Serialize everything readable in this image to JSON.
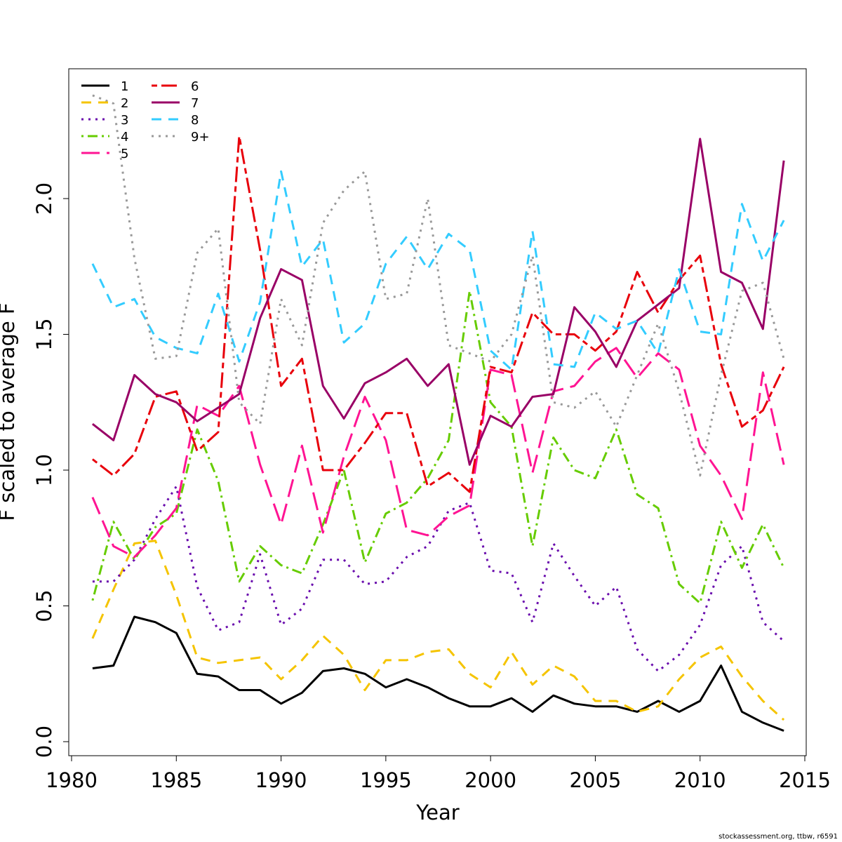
{
  "chart_data": {
    "type": "line",
    "title": "",
    "xlabel": "Year",
    "ylabel": "F scaled to average F",
    "xlim": [
      1980,
      2015
    ],
    "ylim": [
      0.0,
      2.4
    ],
    "xticks": [
      1980,
      1985,
      1990,
      1995,
      2000,
      2005,
      2010,
      2015
    ],
    "xtick_labels": [
      "1980",
      "1985",
      "1990",
      "1995",
      "2000",
      "2005",
      "2010",
      "2015"
    ],
    "yticks": [
      0.0,
      0.5,
      1.0,
      1.5,
      2.0
    ],
    "ytick_labels": [
      "0.0",
      "0.5",
      "1.0",
      "1.5",
      "2.0"
    ],
    "legend_position": "top-left",
    "x": [
      1981,
      1982,
      1983,
      1984,
      1985,
      1986,
      1987,
      1988,
      1989,
      1990,
      1991,
      1992,
      1993,
      1994,
      1995,
      1996,
      1997,
      1998,
      1999,
      2000,
      2001,
      2002,
      2003,
      2004,
      2005,
      2006,
      2007,
      2008,
      2009,
      2010,
      2011,
      2012,
      2013,
      2014
    ],
    "series": [
      {
        "name": "1",
        "color": "#000000",
        "dash": "solid",
        "values": [
          0.27,
          0.28,
          0.46,
          0.44,
          0.4,
          0.25,
          0.24,
          0.19,
          0.19,
          0.14,
          0.18,
          0.26,
          0.27,
          0.25,
          0.2,
          0.23,
          0.2,
          0.16,
          0.13,
          0.13,
          0.16,
          0.11,
          0.17,
          0.14,
          0.13,
          0.13,
          0.11,
          0.15,
          0.11,
          0.15,
          0.28,
          0.11,
          0.07,
          0.04
        ]
      },
      {
        "name": "2",
        "color": "#F5C400",
        "dash": "dashed",
        "values": [
          0.38,
          0.56,
          0.73,
          0.74,
          0.54,
          0.31,
          0.29,
          0.3,
          0.31,
          0.23,
          0.3,
          0.39,
          0.32,
          0.19,
          0.3,
          0.3,
          0.33,
          0.34,
          0.25,
          0.2,
          0.33,
          0.21,
          0.28,
          0.24,
          0.15,
          0.15,
          0.11,
          0.13,
          0.23,
          0.31,
          0.35,
          0.24,
          0.15,
          0.08
        ]
      },
      {
        "name": "3",
        "color": "#6A0DAD",
        "dash": "dotted",
        "values": [
          0.59,
          0.59,
          0.67,
          0.82,
          0.94,
          0.57,
          0.41,
          0.44,
          0.69,
          0.43,
          0.49,
          0.67,
          0.67,
          0.58,
          0.59,
          0.68,
          0.72,
          0.85,
          0.88,
          0.63,
          0.62,
          0.44,
          0.73,
          0.61,
          0.5,
          0.57,
          0.34,
          0.26,
          0.32,
          0.43,
          0.65,
          0.72,
          0.44,
          0.37
        ]
      },
      {
        "name": "4",
        "color": "#66CC00",
        "dash": "dotdash",
        "values": [
          0.52,
          0.81,
          0.67,
          0.79,
          0.84,
          1.15,
          0.96,
          0.59,
          0.72,
          0.65,
          0.62,
          0.8,
          1.0,
          0.66,
          0.84,
          0.88,
          0.97,
          1.11,
          1.66,
          1.25,
          1.16,
          0.72,
          1.12,
          1.0,
          0.97,
          1.15,
          0.91,
          0.86,
          0.58,
          0.51,
          0.81,
          0.64,
          0.8,
          0.64
        ]
      },
      {
        "name": "5",
        "color": "#FF1493",
        "dash": "longdash",
        "values": [
          0.9,
          0.72,
          0.68,
          0.76,
          0.86,
          1.24,
          1.2,
          1.31,
          1.02,
          0.8,
          1.09,
          0.77,
          1.05,
          1.27,
          1.11,
          0.78,
          0.76,
          0.83,
          0.87,
          1.37,
          1.35,
          0.99,
          1.29,
          1.31,
          1.4,
          1.45,
          1.34,
          1.43,
          1.37,
          1.09,
          0.98,
          0.82,
          1.36,
          1.02
        ]
      },
      {
        "name": "6",
        "color": "#E8000B",
        "dash": "twodash",
        "values": [
          1.04,
          0.98,
          1.06,
          1.27,
          1.29,
          1.07,
          1.14,
          2.23,
          1.81,
          1.31,
          1.41,
          1.0,
          1.0,
          1.1,
          1.21,
          1.21,
          0.94,
          0.99,
          0.92,
          1.38,
          1.36,
          1.58,
          1.5,
          1.5,
          1.44,
          1.51,
          1.73,
          1.58,
          1.7,
          1.79,
          1.39,
          1.16,
          1.22,
          1.38
        ]
      },
      {
        "name": "7",
        "color": "#990066",
        "dash": "solid",
        "values": [
          1.17,
          1.11,
          1.35,
          1.28,
          1.25,
          1.18,
          1.23,
          1.28,
          1.56,
          1.74,
          1.7,
          1.31,
          1.19,
          1.32,
          1.36,
          1.41,
          1.31,
          1.39,
          1.02,
          1.2,
          1.16,
          1.27,
          1.28,
          1.6,
          1.51,
          1.38,
          1.55,
          1.61,
          1.67,
          2.22,
          1.73,
          1.69,
          1.52,
          2.14
        ]
      },
      {
        "name": "8",
        "color": "#33CCFF",
        "dash": "dashed",
        "values": [
          1.76,
          1.6,
          1.63,
          1.49,
          1.45,
          1.43,
          1.65,
          1.4,
          1.62,
          2.1,
          1.75,
          1.85,
          1.47,
          1.54,
          1.76,
          1.86,
          1.74,
          1.87,
          1.81,
          1.44,
          1.37,
          1.88,
          1.39,
          1.38,
          1.58,
          1.52,
          1.55,
          1.43,
          1.74,
          1.51,
          1.5,
          1.98,
          1.77,
          1.92
        ]
      },
      {
        "name": "9+",
        "color": "#999999",
        "dash": "dotted",
        "values": [
          2.38,
          2.35,
          1.78,
          1.41,
          1.42,
          1.8,
          1.89,
          1.25,
          1.17,
          1.63,
          1.46,
          1.91,
          2.03,
          2.1,
          1.63,
          1.65,
          2.0,
          1.46,
          1.43,
          1.4,
          1.5,
          1.79,
          1.25,
          1.23,
          1.29,
          1.16,
          1.35,
          1.54,
          1.29,
          0.98,
          1.35,
          1.66,
          1.69,
          1.41
        ]
      }
    ]
  },
  "footer": {
    "credit": "stockassessment.org, ttbw, r6591"
  }
}
